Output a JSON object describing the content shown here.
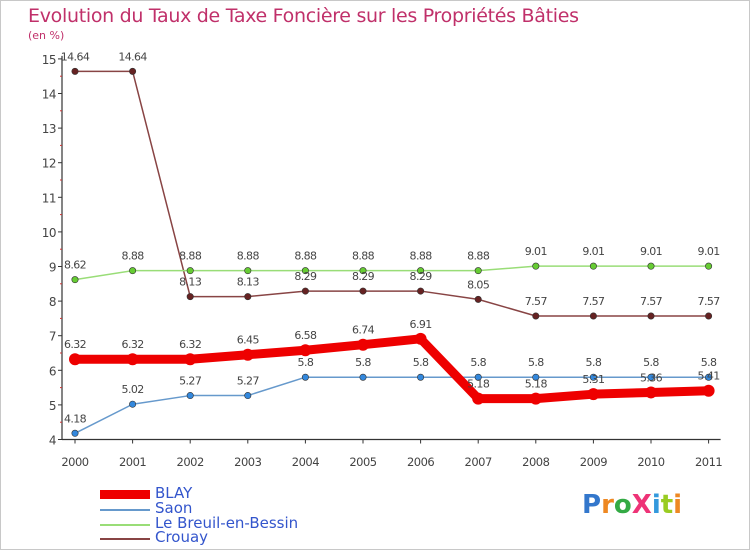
{
  "title": "Evolution du Taux de Taxe Foncière sur les Propriétés Bâties",
  "unit": "(en %)",
  "logo": "ProXiti",
  "chart_data": {
    "type": "line",
    "x": [
      "2000",
      "2001",
      "2002",
      "2003",
      "2004",
      "2005",
      "2006",
      "2007",
      "2008",
      "2009",
      "2010",
      "2011"
    ],
    "ylim": [
      4,
      15
    ],
    "yticks": [
      "4",
      "5",
      "6",
      "7",
      "8",
      "9",
      "10",
      "11",
      "12",
      "13",
      "14",
      "15"
    ],
    "grid": false,
    "series": [
      {
        "name": "BLAY",
        "color": "#ee0000",
        "thick": true,
        "values": [
          6.32,
          6.32,
          6.32,
          6.45,
          6.58,
          6.74,
          6.91,
          5.18,
          5.18,
          5.31,
          5.36,
          5.41
        ],
        "labels": [
          "6.32",
          "6.32",
          "6.32",
          "6.45",
          "6.58",
          "6.74",
          "6.91",
          "5.18",
          "5.18",
          "5.31",
          "5.36",
          "5.41"
        ]
      },
      {
        "name": "Saon",
        "color": "#6699cc",
        "marker": "#3388dd",
        "values": [
          4.18,
          5.02,
          5.27,
          5.27,
          5.8,
          5.8,
          5.8,
          5.8,
          5.8,
          5.8,
          5.8,
          5.8
        ],
        "labels": [
          "4.18",
          "5.02",
          "5.27",
          "5.27",
          "5.8",
          "5.8",
          "5.8",
          "5.8",
          "5.8",
          "5.8",
          "5.8",
          "5.8"
        ]
      },
      {
        "name": "Le Breuil-en-Bessin",
        "color": "#99dd77",
        "marker": "#66cc33",
        "values": [
          8.62,
          8.88,
          8.88,
          8.88,
          8.88,
          8.88,
          8.88,
          8.88,
          9.01,
          9.01,
          9.01,
          9.01
        ],
        "labels": [
          "8.62",
          "8.88",
          "8.88",
          "8.88",
          "8.88",
          "8.88",
          "8.88",
          "8.88",
          "9.01",
          "9.01",
          "9.01",
          "9.01"
        ]
      },
      {
        "name": "Crouay",
        "color": "#884444",
        "marker": "#662222",
        "values": [
          14.64,
          14.64,
          8.13,
          8.13,
          8.29,
          8.29,
          8.29,
          8.05,
          7.57,
          7.57,
          7.57,
          7.57
        ],
        "labels": [
          "14.64",
          "14.64",
          "8.13",
          "8.13",
          "8.29",
          "8.29",
          "8.29",
          "8.05",
          "7.57",
          "7.57",
          "7.57",
          "7.57"
        ]
      }
    ]
  }
}
